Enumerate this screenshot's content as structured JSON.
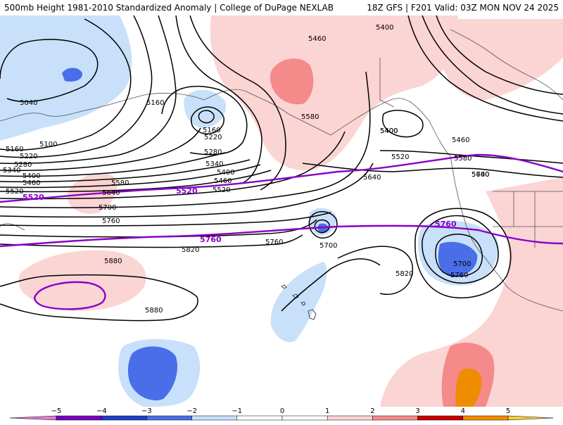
{
  "header": {
    "left": "500mb Height 1981-2010 Standardized Anomaly | College of DuPage NEXLAB",
    "right": "18Z GFS | F201 Valid: 03Z MON NOV 24 2025"
  },
  "colors": {
    "neg5": "#e07ad8",
    "neg4": "#7a00c0",
    "neg3": "#1e3cc8",
    "neg2": "#4a6ee8",
    "neg1": "#c8e0fa",
    "pos1": "#fbd4d4",
    "pos2": "#f48a8a",
    "pos3": "#c80000",
    "pos4": "#f08c00",
    "pos5": "#f8cc3c",
    "purple_contour": "#8a00c8"
  },
  "contour_labels": [
    {
      "text": "5040"
    },
    {
      "text": "5100"
    },
    {
      "text": "5160"
    },
    {
      "text": "5220"
    },
    {
      "text": "5280"
    },
    {
      "text": "5340"
    },
    {
      "text": "5400"
    },
    {
      "text": "5460"
    },
    {
      "text": "5520"
    },
    {
      "text": "5160"
    },
    {
      "text": "5160"
    },
    {
      "text": "5220"
    },
    {
      "text": "5280"
    },
    {
      "text": "5340"
    },
    {
      "text": "5400"
    },
    {
      "text": "5460"
    },
    {
      "text": "5520"
    },
    {
      "text": "5580"
    },
    {
      "text": "5640"
    },
    {
      "text": "5700"
    },
    {
      "text": "5760"
    },
    {
      "text": "5820"
    },
    {
      "text": "5880"
    },
    {
      "text": "5880"
    },
    {
      "text": "5460"
    },
    {
      "text": "5400"
    },
    {
      "text": "5580"
    },
    {
      "text": "5640"
    },
    {
      "text": "5400"
    },
    {
      "text": "5460"
    },
    {
      "text": "5520"
    },
    {
      "text": "5580"
    },
    {
      "text": "5640"
    },
    {
      "text": "5700"
    },
    {
      "text": "5760"
    },
    {
      "text": "5700"
    },
    {
      "text": "5700"
    },
    {
      "text": "5760"
    },
    {
      "text": "5820"
    },
    {
      "text": "5400"
    }
  ],
  "purple_labels": [
    {
      "text": "5520"
    },
    {
      "text": "5520"
    },
    {
      "text": "5760"
    },
    {
      "text": "5760"
    }
  ],
  "colorbar": {
    "ticks": [
      "−5",
      "−4",
      "−3",
      "−2",
      "−1",
      "0",
      "1",
      "2",
      "3",
      "4",
      "5"
    ]
  }
}
